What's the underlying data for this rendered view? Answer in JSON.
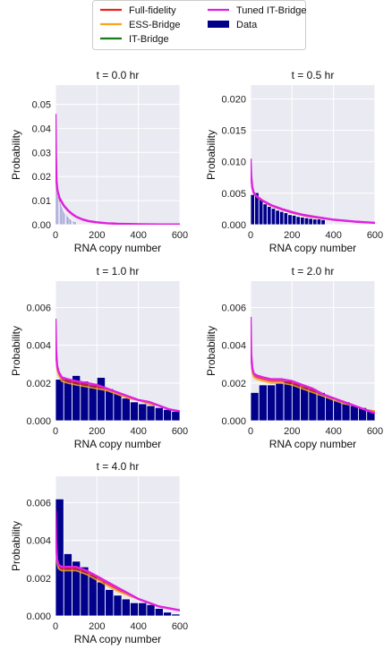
{
  "legend": {
    "entries": [
      {
        "label": "Full-fidelity",
        "color": "#e8251f",
        "kind": "line"
      },
      {
        "label": "ESS-Bridge",
        "color": "#f5a623",
        "kind": "line"
      },
      {
        "label": "IT-Bridge",
        "color": "#1a7a1a",
        "kind": "line"
      },
      {
        "label": "Tuned IT-Bridge",
        "color": "#e020e0",
        "kind": "line"
      },
      {
        "label": "Data",
        "color": "#00008b",
        "kind": "patch"
      }
    ]
  },
  "chart_data": [
    {
      "type": "bar",
      "title": "t = 0.0 hr",
      "xlabel": "RNA copy number",
      "ylabel": "Probability",
      "xlim": [
        0,
        600
      ],
      "ylim": [
        0,
        0.058
      ],
      "xticks": [
        "0",
        "200",
        "400",
        "600"
      ],
      "yticks": [
        0,
        0.01,
        0.02,
        0.03,
        0.04,
        0.05
      ],
      "ytick_labels": [
        "0.00",
        "0.01",
        "0.02",
        "0.03",
        "0.04",
        "0.05"
      ],
      "bin_width": 5,
      "bin_start": 0,
      "bars": [
        0.0245,
        0.016,
        0.0125,
        0.0105,
        0.009,
        0.0078,
        0.0068,
        0.006,
        0.0052,
        0.0046,
        0.004,
        0.0035,
        0.0031,
        0.0027,
        0.0024,
        0.0021,
        0.0018,
        0.0016,
        0.0014,
        0.0012
      ],
      "curves": [
        {
          "name": "Full-fidelity",
          "x": [
            0,
            2,
            5,
            10,
            20,
            40,
            60,
            80,
            100,
            130,
            160,
            200,
            250,
            300,
            400,
            500,
            600
          ],
          "y": [
            0.046,
            0.028,
            0.0175,
            0.0135,
            0.0105,
            0.0078,
            0.0058,
            0.0043,
            0.0032,
            0.0021,
            0.0014,
            0.0009,
            0.0006,
            0.0004,
            0.0002,
            0.0001,
            0.0001
          ]
        },
        {
          "name": "Tuned IT-Bridge",
          "x": [
            0,
            2,
            5,
            10,
            20,
            40,
            60,
            80,
            100,
            130,
            160,
            200,
            250,
            300,
            400,
            500,
            600
          ],
          "y": [
            0.046,
            0.029,
            0.018,
            0.014,
            0.011,
            0.008,
            0.006,
            0.0045,
            0.0033,
            0.0022,
            0.0015,
            0.001,
            0.0006,
            0.0004,
            0.0002,
            0.0001,
            0.0001
          ]
        }
      ]
    },
    {
      "type": "bar",
      "title": "t = 0.5 hr",
      "xlabel": "RNA copy number",
      "ylabel": "Probability",
      "xlim": [
        0,
        600
      ],
      "ylim": [
        0,
        0.0222
      ],
      "xticks": [
        "0",
        "200",
        "400",
        "600"
      ],
      "yticks": [
        0,
        0.005,
        0.01,
        0.015,
        0.02
      ],
      "ytick_labels": [
        "0.000",
        "0.005",
        "0.010",
        "0.015",
        "0.020"
      ],
      "bin_width": 20,
      "bin_start": 0,
      "bars": [
        0.0048,
        0.0051,
        0.0041,
        0.0033,
        0.0029,
        0.0026,
        0.0023,
        0.0021,
        0.0019,
        0.0016,
        0.0015,
        0.0013,
        0.0012,
        0.0011,
        0.001,
        0.0009,
        0.0009,
        0.0008
      ],
      "curves": [
        {
          "name": "Full-fidelity",
          "x": [
            0,
            3,
            8,
            15,
            30,
            60,
            100,
            150,
            200,
            250,
            300,
            400,
            500,
            600
          ],
          "y": [
            0.0102,
            0.0075,
            0.0058,
            0.005,
            0.0044,
            0.0037,
            0.003,
            0.0024,
            0.0019,
            0.0015,
            0.0012,
            0.0008,
            0.0005,
            0.0003
          ]
        },
        {
          "name": "Tuned IT-Bridge",
          "x": [
            0,
            3,
            8,
            15,
            30,
            60,
            100,
            150,
            200,
            250,
            300,
            400,
            500,
            600
          ],
          "y": [
            0.0105,
            0.0077,
            0.006,
            0.0051,
            0.0045,
            0.0038,
            0.0031,
            0.0025,
            0.002,
            0.0016,
            0.0013,
            0.0008,
            0.0005,
            0.0003
          ]
        }
      ]
    },
    {
      "type": "bar",
      "title": "t = 1.0 hr",
      "xlabel": "RNA copy number",
      "ylabel": "Probability",
      "xlim": [
        0,
        600
      ],
      "ylim": [
        0,
        0.0074
      ],
      "xticks": [
        "0",
        "200",
        "400",
        "600"
      ],
      "yticks": [
        0,
        0.002,
        0.004,
        0.006
      ],
      "ytick_labels": [
        "0.000",
        "0.002",
        "0.004",
        "0.006"
      ],
      "bin_width": 40,
      "bin_start": 0,
      "bars": [
        0.0022,
        0.0022,
        0.0024,
        0.0021,
        0.0019,
        0.0023,
        0.0017,
        0.0015,
        0.0012,
        0.001,
        0.0009,
        0.0008,
        0.0007,
        0.0006,
        0.0005
      ],
      "curves": [
        {
          "name": "Full-fidelity",
          "x": [
            0,
            3,
            8,
            15,
            30,
            60,
            100,
            150,
            200,
            250,
            300,
            350,
            400,
            450,
            500,
            550,
            600
          ],
          "y": [
            0.0054,
            0.0036,
            0.0028,
            0.0025,
            0.0022,
            0.0021,
            0.002,
            0.0019,
            0.0018,
            0.0016,
            0.0014,
            0.0012,
            0.0011,
            0.0009,
            0.0008,
            0.0006,
            0.0005
          ]
        },
        {
          "name": "ESS-Bridge",
          "x": [
            0,
            3,
            8,
            15,
            30,
            60,
            100,
            150,
            200,
            250,
            300,
            350,
            400,
            450,
            500,
            550,
            600
          ],
          "y": [
            0.0053,
            0.0035,
            0.0027,
            0.0024,
            0.0021,
            0.002,
            0.0019,
            0.0018,
            0.0017,
            0.0016,
            0.0014,
            0.0012,
            0.0011,
            0.0009,
            0.0008,
            0.0006,
            0.0005
          ]
        },
        {
          "name": "Tuned IT-Bridge",
          "x": [
            0,
            3,
            8,
            15,
            30,
            60,
            100,
            150,
            200,
            250,
            300,
            350,
            400,
            450,
            500,
            550,
            600
          ],
          "y": [
            0.0054,
            0.0037,
            0.0029,
            0.0026,
            0.0023,
            0.0022,
            0.0021,
            0.002,
            0.0019,
            0.0017,
            0.0015,
            0.0013,
            0.0011,
            0.001,
            0.0008,
            0.0006,
            0.0005
          ]
        }
      ]
    },
    {
      "type": "bar",
      "title": "t = 2.0 hr",
      "xlabel": "RNA copy number",
      "ylabel": "Probability",
      "xlim": [
        0,
        600
      ],
      "ylim": [
        0,
        0.0074
      ],
      "xticks": [
        "0",
        "200",
        "400",
        "600"
      ],
      "yticks": [
        0,
        0.002,
        0.004,
        0.006
      ],
      "ytick_labels": [
        "0.000",
        "0.002",
        "0.004",
        "0.006"
      ],
      "bin_width": 40,
      "bin_start": 0,
      "bars": [
        0.0015,
        0.0019,
        0.0019,
        0.002,
        0.0021,
        0.002,
        0.0018,
        0.0017,
        0.0015,
        0.0013,
        0.0011,
        0.001,
        0.0008,
        0.0007,
        0.0005
      ],
      "curves": [
        {
          "name": "Full-fidelity",
          "x": [
            0,
            3,
            8,
            15,
            30,
            60,
            100,
            150,
            200,
            250,
            300,
            350,
            400,
            450,
            500,
            550,
            600
          ],
          "y": [
            0.0055,
            0.0034,
            0.0027,
            0.0024,
            0.0023,
            0.0022,
            0.0021,
            0.0021,
            0.002,
            0.0018,
            0.0016,
            0.0014,
            0.0012,
            0.001,
            0.0008,
            0.0006,
            0.0005
          ]
        },
        {
          "name": "ESS-Bridge",
          "x": [
            0,
            3,
            8,
            15,
            30,
            60,
            100,
            150,
            200,
            250,
            300,
            350,
            400,
            450,
            500,
            550,
            600
          ],
          "y": [
            0.0054,
            0.0033,
            0.0026,
            0.0023,
            0.0022,
            0.0021,
            0.002,
            0.002,
            0.0019,
            0.0017,
            0.0015,
            0.0013,
            0.0011,
            0.0009,
            0.0008,
            0.0006,
            0.0005
          ]
        },
        {
          "name": "Tuned IT-Bridge",
          "x": [
            0,
            3,
            8,
            15,
            30,
            60,
            100,
            150,
            200,
            250,
            300,
            350,
            400,
            450,
            500,
            550,
            600
          ],
          "y": [
            0.0055,
            0.0035,
            0.0028,
            0.0025,
            0.0024,
            0.0023,
            0.0022,
            0.0022,
            0.0021,
            0.0019,
            0.0017,
            0.0014,
            0.0012,
            0.001,
            0.0008,
            0.0006,
            0.0004
          ]
        }
      ]
    },
    {
      "type": "bar",
      "title": "t = 4.0 hr",
      "xlabel": "RNA copy number",
      "ylabel": "Probability",
      "xlim": [
        0,
        600
      ],
      "ylim": [
        0,
        0.0074
      ],
      "xticks": [
        "0",
        "200",
        "400",
        "600"
      ],
      "yticks": [
        0,
        0.002,
        0.004,
        0.006
      ],
      "ytick_labels": [
        "0.000",
        "0.002",
        "0.004",
        "0.006"
      ],
      "bin_width": 40,
      "bin_start": 0,
      "bars": [
        0.0062,
        0.0033,
        0.0029,
        0.0026,
        0.0022,
        0.0018,
        0.0014,
        0.0011,
        0.0009,
        0.0007,
        0.0007,
        0.0006,
        0.0004,
        0.0002,
        0.0001
      ],
      "curves": [
        {
          "name": "Full-fidelity",
          "x": [
            0,
            3,
            8,
            15,
            30,
            60,
            100,
            150,
            200,
            250,
            300,
            350,
            400,
            450,
            500,
            550,
            600
          ],
          "y": [
            0.0056,
            0.0038,
            0.0029,
            0.0026,
            0.0025,
            0.0025,
            0.0025,
            0.0023,
            0.002,
            0.0017,
            0.0014,
            0.0011,
            0.0009,
            0.0007,
            0.0005,
            0.0004,
            0.0003
          ]
        },
        {
          "name": "ESS-Bridge",
          "x": [
            0,
            3,
            8,
            15,
            30,
            60,
            100,
            150,
            200,
            250,
            300,
            350,
            400,
            450,
            500,
            550,
            600
          ],
          "y": [
            0.0055,
            0.0037,
            0.0028,
            0.0025,
            0.0024,
            0.0024,
            0.0024,
            0.0022,
            0.0019,
            0.0016,
            0.0013,
            0.0011,
            0.0009,
            0.0007,
            0.0005,
            0.0004,
            0.0003
          ]
        },
        {
          "name": "Tuned IT-Bridge",
          "x": [
            0,
            3,
            8,
            15,
            30,
            60,
            100,
            150,
            200,
            250,
            300,
            350,
            400,
            450,
            500,
            550,
            600
          ],
          "y": [
            0.0056,
            0.0039,
            0.003,
            0.0027,
            0.0026,
            0.0026,
            0.0026,
            0.0024,
            0.0021,
            0.0018,
            0.0015,
            0.0012,
            0.0009,
            0.0007,
            0.0005,
            0.0004,
            0.0003
          ]
        }
      ]
    }
  ]
}
